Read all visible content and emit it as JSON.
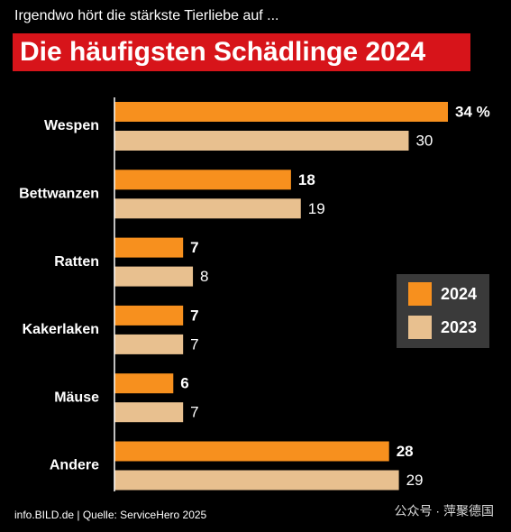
{
  "chart_data": {
    "type": "bar",
    "orientation": "horizontal",
    "subtitle": "Irgendwo hört die stärkste Tierliebe auf ...",
    "title": "Die häufigsten Schädlinge 2024",
    "categories": [
      "Wespen",
      "Bettwanzen",
      "Ratten",
      "Kakerlaken",
      "Mäuse",
      "Andere"
    ],
    "series": [
      {
        "name": "2024",
        "color": "#f7901e",
        "values": [
          34,
          18,
          7,
          7,
          6,
          28
        ],
        "value_labels": [
          "34 %",
          "18",
          "7",
          "7",
          "6",
          "28"
        ]
      },
      {
        "name": "2023",
        "color": "#e8c08f",
        "values": [
          30,
          19,
          8,
          7,
          7,
          29
        ]
      }
    ],
    "source": "info.BILD.de | Quelle: ServiceHero 2025",
    "watermark": "公众号 · 萍聚德国"
  }
}
